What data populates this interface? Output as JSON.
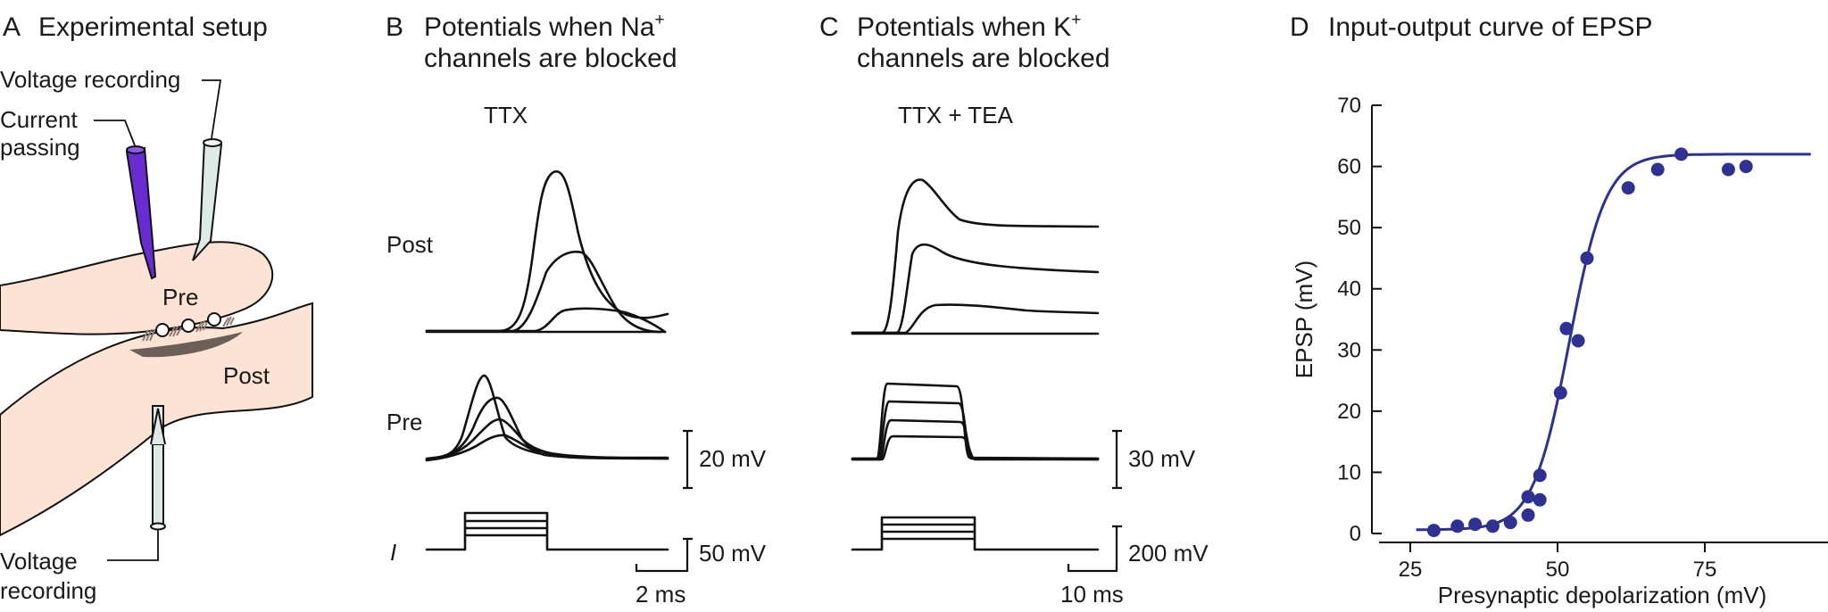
{
  "panels": {
    "a": {
      "letter": "A",
      "title": "Experimental setup",
      "labels": {
        "voltage_top": "Voltage recording",
        "current_line1": "Current",
        "current_line2": "passing",
        "pre": "Pre",
        "post": "Post",
        "voltage_bottom_line1": "Voltage",
        "voltage_bottom_line2": "recording"
      }
    },
    "b": {
      "letter": "B",
      "title_line1": "Potentials when Na",
      "title_sup": "+",
      "title_line2": "channels are blocked",
      "drug": "TTX",
      "row_post": "Post",
      "row_pre": "Pre",
      "row_i": "I",
      "scale_v": "20 mV",
      "scale_i": "50 mV",
      "scale_t": "2 ms"
    },
    "c": {
      "letter": "C",
      "title_line1": "Potentials when K",
      "title_sup": "+",
      "title_line2": "channels are blocked",
      "drug": "TTX + TEA",
      "scale_v": "30 mV",
      "scale_i": "200 mV",
      "scale_t": "10 ms"
    },
    "d": {
      "letter": "D",
      "title": "Input-output curve of EPSP"
    }
  },
  "colors": {
    "tissue": "#fce3d3",
    "curve": "#2e3192",
    "electrode_purple": "#6a2bd0",
    "electrode_glass": "#dfe9e7",
    "synapse_shadow": "#6b5f59"
  },
  "chart_data": {
    "type": "scatter",
    "title": "Input-output curve of EPSP",
    "xlabel": "Presynaptic depolarization (mV)",
    "ylabel": "EPSP (mV)",
    "xlim": [
      20,
      93
    ],
    "ylim": [
      0,
      70
    ],
    "xticks": [
      25,
      50,
      75
    ],
    "yticks": [
      0,
      10,
      20,
      30,
      40,
      50,
      60,
      70
    ],
    "points": [
      {
        "x": 29,
        "y": 0.5
      },
      {
        "x": 33,
        "y": 1.2
      },
      {
        "x": 36,
        "y": 1.5
      },
      {
        "x": 39,
        "y": 1.2
      },
      {
        "x": 42,
        "y": 1.8
      },
      {
        "x": 45,
        "y": 3
      },
      {
        "x": 45,
        "y": 6
      },
      {
        "x": 47,
        "y": 5.5
      },
      {
        "x": 47,
        "y": 9.5
      },
      {
        "x": 50.5,
        "y": 23
      },
      {
        "x": 51.5,
        "y": 33.5
      },
      {
        "x": 53.5,
        "y": 31.5
      },
      {
        "x": 55,
        "y": 45
      },
      {
        "x": 62,
        "y": 56.5
      },
      {
        "x": 67,
        "y": 59.5
      },
      {
        "x": 71,
        "y": 62
      },
      {
        "x": 79,
        "y": 59.5
      },
      {
        "x": 82,
        "y": 60
      }
    ],
    "fit": {
      "type": "sigmoid",
      "min": 0.6,
      "max": 62,
      "x50": 52,
      "slope": 3.1
    },
    "grid": false,
    "legend": "none"
  }
}
